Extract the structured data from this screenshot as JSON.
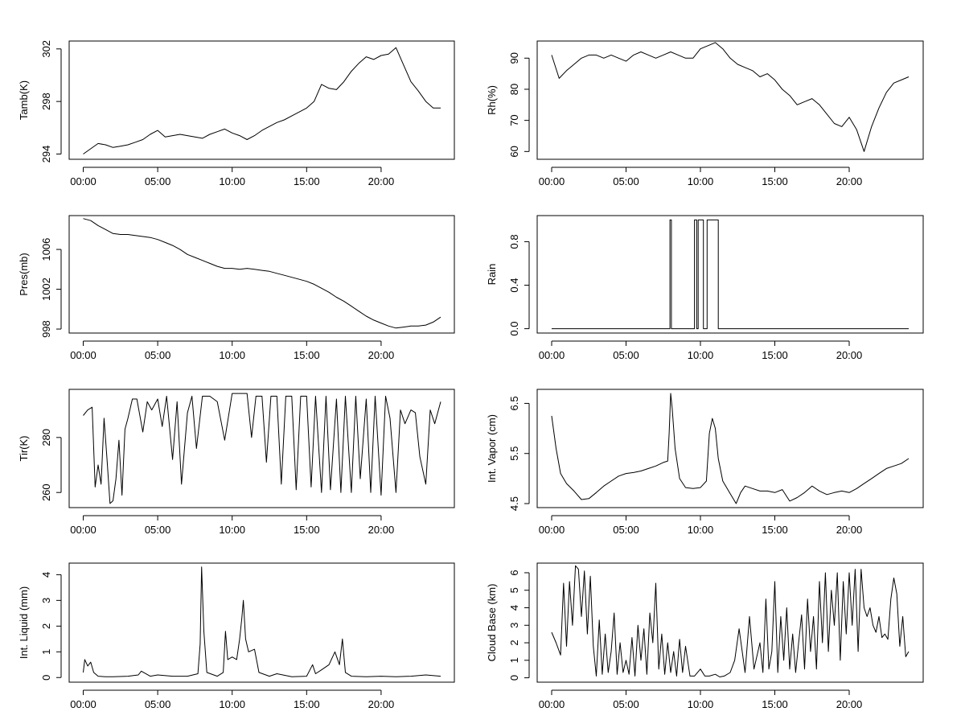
{
  "x_ticks": [
    "00:00",
    "05:00",
    "10:00",
    "15:00",
    "20:00"
  ],
  "x_range_hours": [
    0,
    24
  ],
  "chart_data": [
    {
      "type": "line",
      "ylabel": "Tamb(K)",
      "ylim": [
        293.6,
        302.6
      ],
      "yticks": [
        294,
        298,
        302
      ],
      "ytick_labels": [
        "294",
        "298",
        "302"
      ],
      "x": [
        0,
        0.5,
        1,
        1.5,
        2,
        2.5,
        3,
        3.5,
        4,
        4.5,
        5,
        5.5,
        6,
        6.5,
        7,
        7.5,
        8,
        8.5,
        9,
        9.5,
        10,
        10.5,
        11,
        11.5,
        12,
        12.5,
        13,
        13.5,
        14,
        14.5,
        15,
        15.5,
        16,
        16.5,
        17,
        17.5,
        18,
        18.5,
        19,
        19.5,
        20,
        20.5,
        21,
        21.5,
        22,
        22.5,
        23,
        23.5,
        24
      ],
      "values": [
        294.0,
        294.4,
        294.8,
        294.7,
        294.5,
        294.6,
        294.7,
        294.9,
        295.1,
        295.5,
        295.8,
        295.3,
        295.4,
        295.5,
        295.4,
        295.3,
        295.2,
        295.5,
        295.7,
        295.9,
        295.6,
        295.4,
        295.1,
        295.4,
        295.8,
        296.1,
        296.4,
        296.6,
        296.9,
        297.2,
        297.5,
        298.0,
        299.3,
        299.0,
        298.9,
        299.5,
        300.3,
        300.9,
        301.4,
        301.2,
        301.5,
        301.6,
        302.1,
        300.8,
        299.5,
        298.8,
        298.0,
        297.5,
        297.5
      ]
    },
    {
      "type": "line",
      "ylabel": "Rh(%)",
      "ylim": [
        57.5,
        95.5
      ],
      "yticks": [
        60,
        70,
        80,
        90
      ],
      "ytick_labels": [
        "60",
        "70",
        "80",
        "90"
      ],
      "x": [
        0,
        0.5,
        1,
        1.5,
        2,
        2.5,
        3,
        3.5,
        4,
        4.5,
        5,
        5.5,
        6,
        6.5,
        7,
        7.5,
        8,
        8.5,
        9,
        9.5,
        10,
        10.5,
        11,
        11.5,
        12,
        12.5,
        13,
        13.5,
        14,
        14.5,
        15,
        15.5,
        16,
        16.5,
        17,
        17.5,
        18,
        18.5,
        19,
        19.5,
        20,
        20.5,
        21,
        21.5,
        22,
        22.5,
        23,
        23.5,
        24
      ],
      "values": [
        91,
        83.5,
        86,
        88,
        90,
        91,
        91,
        90,
        91,
        90,
        89,
        91,
        92,
        91,
        90,
        91,
        92,
        91,
        90,
        90,
        93,
        94,
        95,
        93,
        90,
        88,
        87,
        86,
        84,
        85,
        83,
        80,
        78,
        75,
        76,
        77,
        75,
        72,
        69,
        68,
        71,
        67,
        60,
        68,
        74,
        79,
        82,
        83,
        84
      ]
    },
    {
      "type": "step",
      "ylabel": "Pres(mb)",
      "ylim": [
        997.6,
        1009.4
      ],
      "yticks": [
        998,
        1002,
        1006
      ],
      "ytick_labels": [
        "998",
        "1002",
        "1006"
      ],
      "x": [
        0,
        0.5,
        1,
        1.5,
        2,
        2.5,
        3,
        3.5,
        4,
        4.5,
        5,
        5.5,
        6,
        6.5,
        7,
        7.5,
        8,
        8.5,
        9,
        9.5,
        10,
        10.5,
        11,
        11.5,
        12,
        12.5,
        13,
        13.5,
        14,
        14.5,
        15,
        15.5,
        16,
        16.5,
        17,
        17.5,
        18,
        18.5,
        19,
        19.5,
        20,
        20.5,
        21,
        21.5,
        22,
        22.5,
        23,
        23.5,
        24
      ],
      "values": [
        1009.1,
        1008.9,
        1008.4,
        1008.0,
        1007.6,
        1007.5,
        1007.5,
        1007.4,
        1007.3,
        1007.2,
        1007.0,
        1006.7,
        1006.4,
        1006.0,
        1005.5,
        1005.2,
        1004.9,
        1004.6,
        1004.3,
        1004.1,
        1004.1,
        1004.0,
        1004.1,
        1004.0,
        1003.9,
        1003.8,
        1003.6,
        1003.4,
        1003.2,
        1003.0,
        1002.8,
        1002.5,
        1002.1,
        1001.7,
        1001.2,
        1000.8,
        1000.3,
        999.8,
        999.3,
        998.9,
        998.6,
        998.3,
        998.1,
        998.2,
        998.3,
        998.3,
        998.4,
        998.7,
        999.2
      ]
    },
    {
      "type": "step",
      "ylabel": "Rain",
      "ylim": [
        -0.04,
        1.04
      ],
      "yticks": [
        0.0,
        0.4,
        0.8
      ],
      "ytick_labels": [
        "0.0",
        "0.4",
        "0.8"
      ],
      "x": [
        0,
        7.95,
        7.95,
        8.05,
        8.05,
        9.6,
        9.6,
        9.75,
        9.75,
        9.85,
        9.85,
        10.2,
        10.2,
        10.45,
        10.45,
        11.2,
        11.2,
        24
      ],
      "values": [
        0,
        0,
        1,
        1,
        0,
        0,
        1,
        1,
        0,
        0,
        1,
        1,
        0,
        0,
        1,
        1,
        0,
        0
      ]
    },
    {
      "type": "line",
      "ylabel": "Tir(K)",
      "ylim": [
        254.5,
        297.5
      ],
      "yticks": [
        260,
        280
      ],
      "ytick_labels": [
        "260",
        "280"
      ],
      "x": [
        0,
        0.3,
        0.6,
        0.8,
        1.0,
        1.2,
        1.4,
        1.6,
        1.8,
        2.0,
        2.2,
        2.4,
        2.6,
        2.8,
        3.0,
        3.3,
        3.6,
        4.0,
        4.3,
        4.6,
        5.0,
        5.3,
        5.6,
        6.0,
        6.3,
        6.6,
        7.0,
        7.3,
        7.6,
        8.0,
        8.5,
        9.0,
        9.5,
        10.0,
        10.5,
        11.0,
        11.3,
        11.6,
        12.0,
        12.3,
        12.6,
        13.0,
        13.3,
        13.6,
        14.0,
        14.3,
        14.6,
        15.0,
        15.3,
        15.6,
        16.0,
        16.3,
        16.6,
        17.0,
        17.3,
        17.6,
        18.0,
        18.3,
        18.6,
        19.0,
        19.3,
        19.6,
        20.0,
        20.3,
        20.6,
        21.0,
        21.3,
        21.6,
        22.0,
        22.3,
        22.6,
        23.0,
        23.3,
        23.6,
        24.0
      ],
      "values": [
        288,
        290,
        291,
        262,
        270,
        263,
        287,
        272,
        256,
        257,
        265,
        279,
        259,
        283,
        287,
        294,
        294,
        282,
        293,
        290,
        294,
        284,
        295,
        272,
        293,
        263,
        289,
        295,
        276,
        295,
        295,
        293,
        279,
        296,
        296,
        296,
        280,
        295,
        295,
        271,
        295,
        295,
        263,
        295,
        295,
        261,
        295,
        295,
        262,
        295,
        260,
        295,
        261,
        294,
        260,
        295,
        260,
        295,
        265,
        294,
        260,
        295,
        259,
        295,
        287,
        260,
        290,
        285,
        290,
        289,
        273,
        263,
        290,
        285,
        293
      ]
    },
    {
      "type": "line",
      "ylabel": "Int. Vapor (cm)",
      "ylim": [
        4.42,
        6.78
      ],
      "yticks": [
        4.5,
        5.5,
        6.5
      ],
      "ytick_labels": [
        "4.5",
        "5.5",
        "6.5"
      ],
      "x": [
        0,
        0.3,
        0.6,
        1.0,
        1.5,
        2.0,
        2.5,
        3.0,
        3.5,
        4.0,
        4.5,
        5.0,
        5.5,
        6.0,
        6.5,
        7.0,
        7.5,
        7.8,
        7.9,
        8.0,
        8.1,
        8.3,
        8.6,
        9.0,
        9.5,
        10.0,
        10.4,
        10.6,
        10.8,
        11.0,
        11.2,
        11.5,
        12.0,
        12.4,
        12.7,
        13.0,
        13.5,
        14.0,
        14.5,
        15.0,
        15.5,
        16.0,
        16.5,
        17.0,
        17.5,
        18.0,
        18.5,
        19.0,
        19.5,
        20.0,
        20.5,
        21.0,
        21.5,
        22.0,
        22.5,
        23.0,
        23.5,
        24.0
      ],
      "values": [
        6.25,
        5.6,
        5.1,
        4.9,
        4.75,
        4.58,
        4.6,
        4.72,
        4.85,
        4.95,
        5.05,
        5.1,
        5.12,
        5.15,
        5.2,
        5.25,
        5.32,
        5.35,
        5.9,
        6.7,
        6.4,
        5.6,
        5.0,
        4.82,
        4.8,
        4.82,
        4.95,
        5.9,
        6.2,
        6.0,
        5.4,
        4.95,
        4.7,
        4.5,
        4.72,
        4.85,
        4.8,
        4.75,
        4.75,
        4.72,
        4.78,
        4.55,
        4.62,
        4.72,
        4.85,
        4.75,
        4.68,
        4.72,
        4.75,
        4.72,
        4.8,
        4.9,
        5.0,
        5.1,
        5.2,
        5.25,
        5.3,
        5.4
      ]
    },
    {
      "type": "line",
      "ylabel": "Int. Liquid (mm)",
      "ylim": [
        -0.18,
        4.45
      ],
      "yticks": [
        0,
        1,
        2,
        3,
        4
      ],
      "ytick_labels": [
        "0",
        "1",
        "2",
        "3",
        "4"
      ],
      "x": [
        0,
        0.1,
        0.3,
        0.5,
        0.7,
        1.0,
        1.5,
        2.0,
        3.0,
        3.7,
        3.9,
        4.5,
        5.0,
        6.0,
        7.0,
        7.7,
        7.85,
        7.95,
        8.1,
        8.3,
        9.0,
        9.4,
        9.55,
        9.7,
        10.0,
        10.3,
        10.5,
        10.65,
        10.75,
        10.9,
        11.1,
        11.5,
        11.8,
        12.5,
        13.0,
        14.0,
        15.0,
        15.4,
        15.6,
        16.0,
        16.5,
        16.9,
        17.2,
        17.4,
        17.6,
        18.0,
        19.0,
        20.0,
        21.0,
        22.0,
        23.0,
        24.0
      ],
      "values": [
        0.2,
        0.7,
        0.45,
        0.6,
        0.2,
        0.05,
        0.03,
        0.03,
        0.05,
        0.1,
        0.25,
        0.05,
        0.1,
        0.05,
        0.05,
        0.15,
        1.3,
        4.3,
        1.8,
        0.2,
        0.05,
        0.2,
        1.8,
        0.7,
        0.8,
        0.7,
        1.5,
        2.3,
        3.0,
        1.5,
        1.0,
        1.1,
        0.2,
        0.05,
        0.15,
        0.03,
        0.05,
        0.5,
        0.15,
        0.3,
        0.5,
        1.0,
        0.5,
        1.5,
        0.2,
        0.05,
        0.03,
        0.05,
        0.03,
        0.05,
        0.1,
        0.05
      ]
    },
    {
      "type": "line",
      "ylabel": "Cloud Base (km)",
      "ylim": [
        -0.25,
        6.55
      ],
      "yticks": [
        0,
        1,
        2,
        3,
        4,
        5,
        6
      ],
      "ytick_labels": [
        "0",
        "1",
        "2",
        "3",
        "4",
        "5",
        "6"
      ],
      "x": [
        0,
        0.3,
        0.6,
        0.8,
        1.0,
        1.2,
        1.4,
        1.6,
        1.8,
        2.0,
        2.2,
        2.4,
        2.6,
        2.8,
        3.0,
        3.2,
        3.4,
        3.6,
        3.8,
        4.0,
        4.2,
        4.4,
        4.6,
        4.8,
        5.0,
        5.2,
        5.4,
        5.6,
        5.8,
        6.0,
        6.2,
        6.4,
        6.6,
        6.8,
        7.0,
        7.2,
        7.4,
        7.6,
        7.8,
        8.0,
        8.2,
        8.4,
        8.6,
        8.8,
        9.0,
        9.3,
        9.6,
        10.0,
        10.3,
        10.6,
        11.0,
        11.3,
        11.6,
        12.0,
        12.3,
        12.6,
        13.0,
        13.3,
        13.6,
        14.0,
        14.2,
        14.4,
        14.6,
        14.8,
        15.0,
        15.2,
        15.4,
        15.6,
        15.8,
        16.0,
        16.2,
        16.4,
        16.6,
        16.8,
        17.0,
        17.2,
        17.4,
        17.6,
        17.8,
        18.0,
        18.2,
        18.4,
        18.6,
        18.8,
        19.0,
        19.2,
        19.4,
        19.6,
        19.8,
        20.0,
        20.2,
        20.4,
        20.6,
        20.8,
        21.0,
        21.2,
        21.4,
        21.6,
        21.8,
        22.0,
        22.2,
        22.4,
        22.6,
        22.8,
        23.0,
        23.2,
        23.4,
        23.6,
        23.8,
        24.0
      ],
      "values": [
        2.6,
        2.0,
        1.3,
        5.4,
        1.8,
        5.5,
        3.0,
        6.4,
        6.2,
        3.5,
        6.1,
        2.5,
        5.8,
        1.8,
        0.1,
        3.3,
        0.2,
        2.5,
        0.3,
        1.5,
        3.7,
        0.2,
        2.0,
        0.3,
        1.0,
        0.2,
        2.3,
        0.1,
        3.0,
        1.0,
        2.8,
        0.2,
        3.7,
        2.0,
        5.4,
        0.5,
        2.5,
        0.2,
        2.0,
        0.3,
        1.5,
        0.1,
        2.2,
        0.3,
        1.8,
        0.1,
        0.1,
        0.5,
        0.1,
        0.1,
        0.2,
        0.05,
        0.1,
        0.3,
        1.0,
        2.8,
        0.3,
        3.5,
        0.5,
        2.0,
        0.3,
        4.5,
        0.5,
        1.5,
        5.5,
        0.3,
        3.5,
        1.0,
        4.0,
        0.5,
        2.5,
        0.3,
        2.0,
        3.6,
        0.5,
        4.5,
        1.5,
        3.5,
        0.5,
        5.5,
        2.0,
        6.0,
        1.5,
        5.0,
        3.0,
        6.0,
        1.0,
        5.5,
        2.5,
        6.0,
        3.0,
        6.2,
        1.5,
        6.2,
        4.0,
        3.5,
        4.0,
        3.0,
        2.6,
        3.5,
        2.3,
        2.5,
        2.2,
        4.5,
        5.7,
        4.8,
        1.8,
        3.5,
        1.2,
        1.5
      ]
    }
  ]
}
